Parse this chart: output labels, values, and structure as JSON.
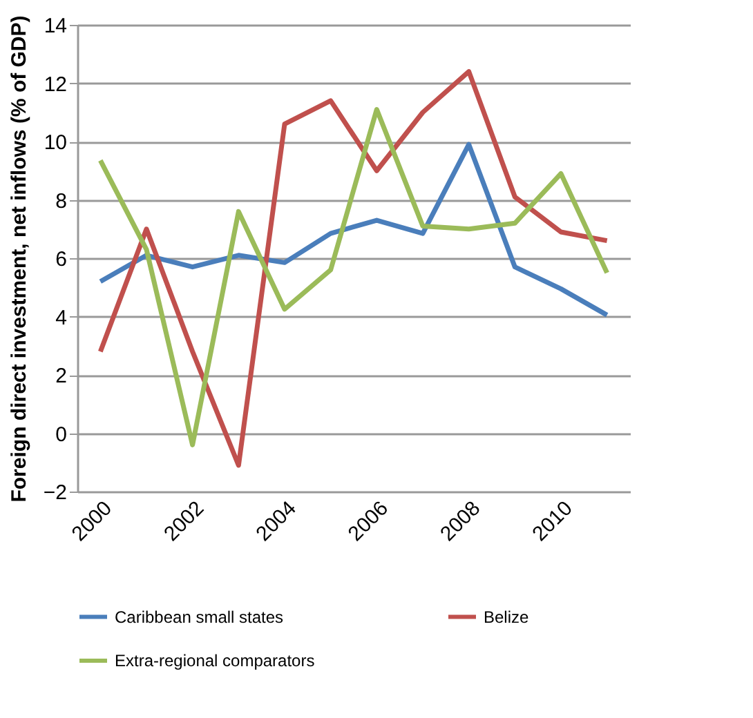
{
  "chart_data": {
    "type": "line",
    "ylabel": "Foreign direct investment, net inflows (% of GDP)",
    "categories": [
      "2000",
      null,
      "2002",
      null,
      "2004",
      null,
      "2006",
      null,
      "2008",
      null,
      "2010",
      null
    ],
    "series": [
      {
        "name": "Caribbean small states",
        "color": "#4a7ebb",
        "values": [
          5.2,
          6.1,
          5.7,
          6.1,
          5.85,
          6.85,
          7.3,
          6.85,
          9.9,
          5.7,
          4.95,
          4.05
        ]
      },
      {
        "name": "Belize",
        "color": "#c0504d",
        "values": [
          2.8,
          7.0,
          2.8,
          -1.1,
          10.6,
          11.4,
          9.0,
          11.0,
          12.4,
          8.1,
          6.9,
          6.6
        ]
      },
      {
        "name": "Extra-regional comparators",
        "color": "#9bbb59",
        "values": [
          9.35,
          6.3,
          -0.4,
          7.6,
          4.25,
          5.6,
          11.1,
          7.1,
          7.0,
          7.2,
          8.9,
          5.5
        ]
      }
    ],
    "ylim": [
      -2,
      14
    ],
    "yticks": [
      -2,
      0,
      2,
      4,
      6,
      8,
      10,
      12,
      14
    ],
    "grid": "y",
    "legend": "bottom",
    "marker": "none",
    "line_style": "solid"
  }
}
